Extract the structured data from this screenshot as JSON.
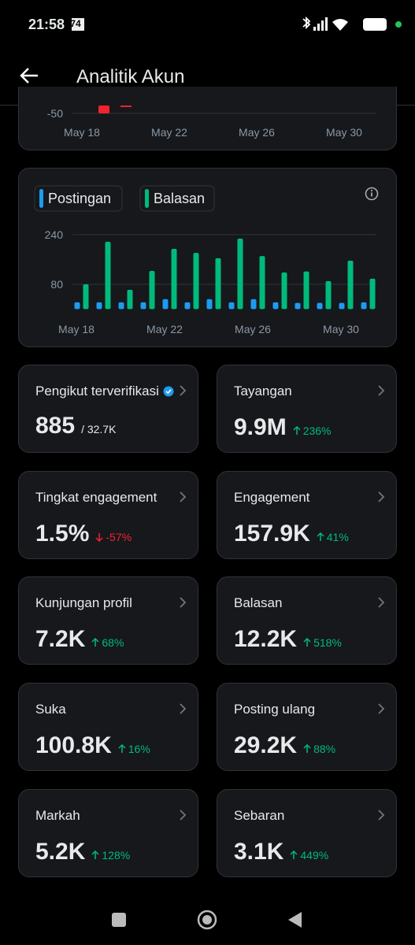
{
  "status_bar": {
    "time": "21:58",
    "battery": "74"
  },
  "header": {
    "title": "Analitik Akun"
  },
  "top_chart": {
    "type": "bar",
    "yticks": [
      -50
    ],
    "categories": [
      "May 18",
      "May 22",
      "May 26",
      "May 30"
    ]
  },
  "chart_data": {
    "type": "bar",
    "categories": [
      "May 18",
      null,
      null,
      null,
      "May 22",
      null,
      null,
      null,
      "May 26",
      null,
      null,
      null,
      "May 30",
      null
    ],
    "series": [
      {
        "name": "Postingan",
        "color": "#1d9bf0",
        "values": [
          22,
          22,
          22,
          22,
          32,
          22,
          32,
          22,
          32,
          22,
          20,
          20,
          20,
          22
        ]
      },
      {
        "name": "Balasan",
        "color": "#00ba7c",
        "values": [
          80,
          217,
          62,
          123,
          194,
          181,
          164,
          227,
          171,
          118,
          121,
          90,
          156,
          98
        ]
      }
    ],
    "ylim": [
      0,
      260
    ],
    "yticks": [
      80,
      240
    ],
    "grid": true
  },
  "stats": [
    {
      "title": "Pengikut terverifikasi",
      "value": "885",
      "sub": "/ 32.7K",
      "verified": true
    },
    {
      "title": "Tayangan",
      "value": "9.9M",
      "change": "236%",
      "direction": "up"
    },
    {
      "title": "Tingkat engagement",
      "value": "1.5%",
      "change": "-57%",
      "direction": "down"
    },
    {
      "title": "Engagement",
      "value": "157.9K",
      "change": "41%",
      "direction": "up"
    },
    {
      "title": "Kunjungan profil",
      "value": "7.2K",
      "change": "68%",
      "direction": "up"
    },
    {
      "title": "Balasan",
      "value": "12.2K",
      "change": "518%",
      "direction": "up"
    },
    {
      "title": "Suka",
      "value": "100.8K",
      "change": "16%",
      "direction": "up"
    },
    {
      "title": "Posting ulang",
      "value": "29.2K",
      "change": "88%",
      "direction": "up"
    },
    {
      "title": "Markah",
      "value": "5.2K",
      "change": "128%",
      "direction": "up"
    },
    {
      "title": "Sebaran",
      "value": "3.1K",
      "change": "449%",
      "direction": "up"
    }
  ]
}
